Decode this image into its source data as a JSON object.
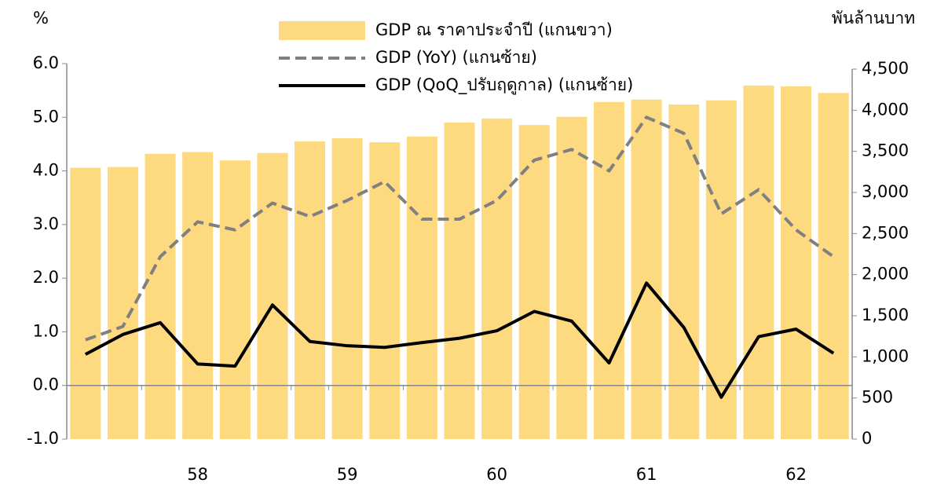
{
  "chart_data": {
    "type": "bar_line",
    "y_unit": "%",
    "y2_unit": "พันล้านบาท",
    "categories": [
      null,
      null,
      null,
      "58",
      null,
      null,
      null,
      "59",
      null,
      null,
      null,
      "60",
      null,
      null,
      null,
      "61",
      null,
      null,
      null,
      "62",
      null
    ],
    "series": [
      {
        "name": "GDP ณ ราคาประจำปี (แกนขวา)",
        "type": "bar",
        "axis": "y2",
        "color": "#fdd97f",
        "values": [
          3300,
          3310,
          3470,
          3490,
          3390,
          3480,
          3620,
          3660,
          3610,
          3680,
          3850,
          3900,
          3820,
          3920,
          4100,
          4130,
          4070,
          4120,
          4300,
          4290,
          4210
        ]
      },
      {
        "name": "GDP (YoY) (แกนซ้าย)",
        "type": "line",
        "dashed": true,
        "color": "#808080",
        "values": [
          0.85,
          1.1,
          2.4,
          3.05,
          2.9,
          3.4,
          3.15,
          3.45,
          3.8,
          3.1,
          3.1,
          3.45,
          4.2,
          4.4,
          4.0,
          5.0,
          4.7,
          3.2,
          3.65,
          2.9,
          2.4
        ]
      },
      {
        "name": "GDP (QoQ_ปรับฤดูกาล) (แกนซ้าย)",
        "type": "line",
        "dashed": false,
        "color": "#000000",
        "values": [
          0.58,
          0.95,
          1.17,
          0.4,
          0.36,
          1.5,
          0.82,
          0.74,
          0.71,
          0.8,
          0.88,
          1.02,
          1.38,
          1.2,
          0.42,
          1.91,
          1.08,
          -0.22,
          0.91,
          1.05,
          0.6
        ]
      }
    ],
    "ylim": [
      -1,
      6
    ],
    "yticks": [
      {
        "value": -1,
        "label": "-1.0"
      },
      {
        "value": 0,
        "label": "0.0"
      },
      {
        "value": 1,
        "label": "1.0"
      },
      {
        "value": 2,
        "label": "2.0"
      },
      {
        "value": 3,
        "label": "3.0"
      },
      {
        "value": 4,
        "label": "4.0"
      },
      {
        "value": 5,
        "label": "5.0"
      },
      {
        "value": 6,
        "label": "6.0"
      }
    ],
    "y2lim": [
      0,
      4500
    ],
    "y2ticks": [
      0,
      500,
      {
        "value": 1000,
        "label": "1,000"
      },
      {
        "value": 1500,
        "label": "1,500"
      },
      {
        "value": 2000,
        "label": "2,000"
      },
      {
        "value": 2500,
        "label": "2,500"
      },
      {
        "value": 3000,
        "label": "3,000"
      },
      {
        "value": 3500,
        "label": "3,500"
      },
      {
        "value": 4000,
        "label": "4,000"
      },
      {
        "value": 4500,
        "label": "4,500"
      }
    ]
  }
}
